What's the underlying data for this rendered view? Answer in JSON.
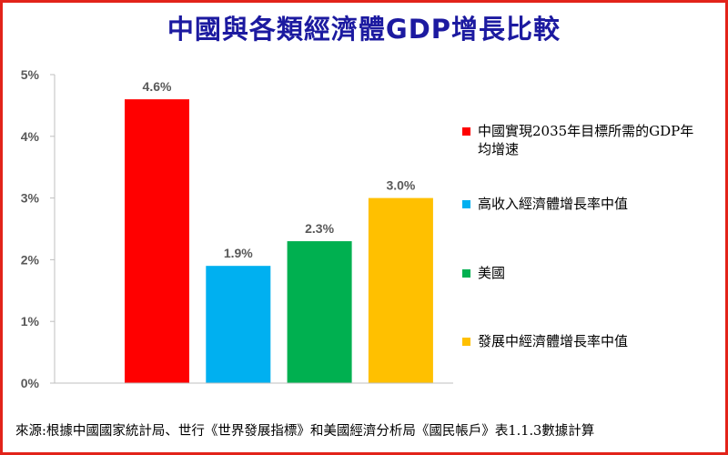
{
  "title": "中國與各類經濟體GDP增長比較",
  "source": "來源:根據中國國家統計局、世行《世界發展指標》和美國經濟分析局《國民帳戶》表1.1.3數據計算",
  "frame_color": "#e2231a",
  "chart_data": {
    "type": "bar",
    "categories": [
      "中國實現2035年目標所需的GDP年均增速",
      "高收入經濟體增長率中值",
      "美國",
      "發展中經濟體增長率中值"
    ],
    "values": [
      4.6,
      1.9,
      2.3,
      3.0
    ],
    "value_labels": [
      "4.6%",
      "1.9%",
      "2.3%",
      "3.0%"
    ],
    "colors": [
      "#ff0000",
      "#00b0f0",
      "#00b050",
      "#ffc000"
    ],
    "ylim": [
      0,
      5
    ],
    "yticks": [
      0,
      1,
      2,
      3,
      4,
      5
    ],
    "ytick_labels": [
      "0%",
      "1%",
      "2%",
      "3%",
      "4%",
      "5%"
    ],
    "grid": false,
    "legend": {
      "position": "right",
      "entries": [
        {
          "label": "中國實現2035年目標所需的GDP年均增速",
          "color": "#ff0000"
        },
        {
          "label": "高收入經濟體增長率中值",
          "color": "#00b0f0"
        },
        {
          "label": "美國",
          "color": "#00b050"
        },
        {
          "label": "發展中經濟體增長率中值",
          "color": "#ffc000"
        }
      ]
    }
  }
}
